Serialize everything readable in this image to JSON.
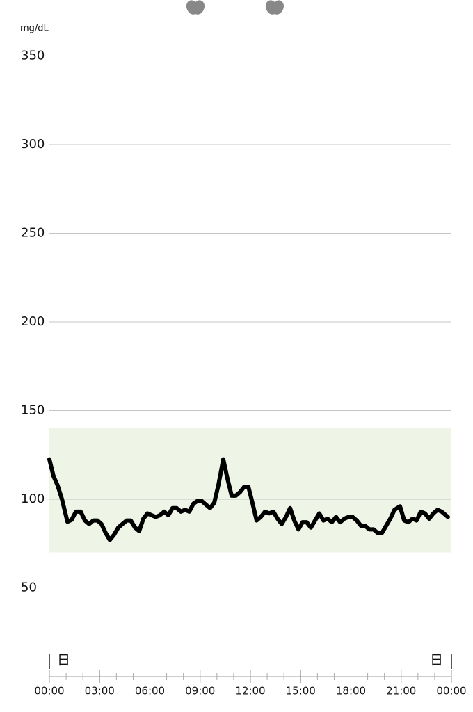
{
  "chart_data": {
    "type": "line",
    "y_unit_label": "mg/dL",
    "day_marker_label": "日",
    "x": [
      0,
      0.25,
      0.5,
      0.75,
      1.08,
      1.33,
      1.58,
      1.87,
      2.12,
      2.37,
      2.62,
      2.87,
      3.11,
      3.36,
      3.61,
      3.86,
      4.11,
      4.36,
      4.61,
      4.86,
      5.11,
      5.36,
      5.61,
      5.85,
      6.1,
      6.35,
      6.6,
      6.85,
      7.1,
      7.35,
      7.6,
      7.85,
      8.1,
      8.35,
      8.6,
      8.84,
      9.09,
      9.34,
      9.59,
      9.84,
      10.09,
      10.38,
      10.63,
      10.88,
      11.13,
      11.38,
      11.63,
      11.88,
      12.12,
      12.37,
      12.62,
      12.87,
      13.12,
      13.37,
      13.62,
      13.87,
      14.12,
      14.37,
      14.62,
      14.87,
      15.11,
      15.36,
      15.61,
      15.86,
      16.11,
      16.36,
      16.61,
      16.86,
      17.11,
      17.36,
      17.61,
      17.86,
      18.1,
      18.35,
      18.6,
      18.85,
      19.1,
      19.35,
      19.6,
      19.85,
      20.1,
      20.35,
      20.6,
      20.93,
      21.18,
      21.43,
      21.68,
      21.92,
      22.17,
      22.42,
      22.67,
      22.92,
      23.17,
      23.42,
      23.79
    ],
    "values": [
      122.5,
      113,
      107.6,
      100,
      87.3,
      88.4,
      93,
      93,
      88,
      86,
      88,
      88,
      86,
      81,
      77,
      80,
      84,
      86,
      88,
      88,
      84,
      82,
      89,
      92,
      91,
      90,
      91,
      93,
      91,
      95,
      95,
      93,
      94,
      93,
      97.5,
      99,
      99,
      97,
      95,
      98,
      108,
      122.5,
      111.6,
      102,
      102,
      104,
      107,
      107,
      98,
      88,
      90,
      93,
      92,
      93,
      89,
      86,
      90,
      95,
      88,
      83,
      87,
      87,
      84,
      88,
      92,
      88,
      89,
      87,
      90,
      87,
      89,
      90,
      90,
      88,
      85,
      85,
      83,
      83,
      81,
      81,
      85,
      89,
      94,
      96,
      88,
      87,
      89,
      88,
      93,
      92,
      89,
      92,
      94,
      93,
      90
    ],
    "color": "#000000",
    "target_range": [
      70,
      140
    ],
    "target_color": "#eef5e6",
    "meal_markers_x": [
      8.72,
      13.45
    ],
    "ylim": [
      0,
      350
    ],
    "yticks": [
      50,
      100,
      150,
      200,
      250,
      300,
      350
    ],
    "xlim": [
      0,
      24
    ],
    "xticks": [
      {
        "value": 0,
        "label": "00:00"
      },
      {
        "value": 3,
        "label": "03:00"
      },
      {
        "value": 6,
        "label": "06:00"
      },
      {
        "value": 9,
        "label": "09:00"
      },
      {
        "value": 12,
        "label": "12:00"
      },
      {
        "value": 15,
        "label": "15:00"
      },
      {
        "value": 18,
        "label": "18:00"
      },
      {
        "value": 21,
        "label": "21:00"
      },
      {
        "value": 24,
        "label": "00:00"
      }
    ],
    "xticks_minor": [
      1,
      2,
      4,
      5,
      7,
      8,
      10,
      11,
      13,
      14,
      16,
      17,
      19,
      20,
      22,
      23
    ],
    "grid": true
  }
}
